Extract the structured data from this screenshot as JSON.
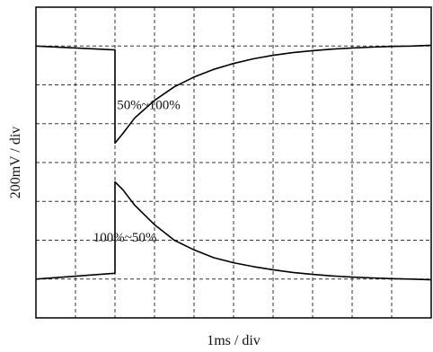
{
  "chart_data": {
    "type": "line",
    "title": "",
    "xlabel": "1ms / div",
    "ylabel": "200mV / div",
    "xlim": [
      0,
      10
    ],
    "ylim": [
      0,
      8
    ],
    "grid": true,
    "annotations": [
      {
        "text": "50%~100%",
        "x": 2.05,
        "y": 5.45
      },
      {
        "text": "100%~50%",
        "x": 1.45,
        "y": 2.05
      }
    ],
    "series": [
      {
        "x": [
          0,
          2.0,
          2.0,
          2.2,
          2.5,
          3.0,
          3.5,
          4.0,
          4.5,
          5.0,
          5.5,
          6.0,
          6.5,
          7.0,
          7.5,
          8.0,
          8.5,
          9.0,
          9.5,
          10.0
        ],
        "y": [
          7.0,
          6.9,
          4.5,
          4.75,
          5.15,
          5.6,
          5.95,
          6.2,
          6.4,
          6.55,
          6.67,
          6.76,
          6.83,
          6.88,
          6.92,
          6.95,
          6.97,
          6.99,
          7.0,
          7.02
        ]
      },
      {
        "x": [
          0,
          2.0,
          2.0,
          2.2,
          2.5,
          3.0,
          3.5,
          4.0,
          4.5,
          5.0,
          5.5,
          6.0,
          6.5,
          7.0,
          7.5,
          8.0,
          8.5,
          9.0,
          9.5,
          10.0
        ],
        "y": [
          1.0,
          1.15,
          3.5,
          3.3,
          2.9,
          2.4,
          2.0,
          1.75,
          1.55,
          1.42,
          1.32,
          1.24,
          1.17,
          1.12,
          1.08,
          1.05,
          1.03,
          1.01,
          1.0,
          0.98
        ]
      }
    ]
  }
}
